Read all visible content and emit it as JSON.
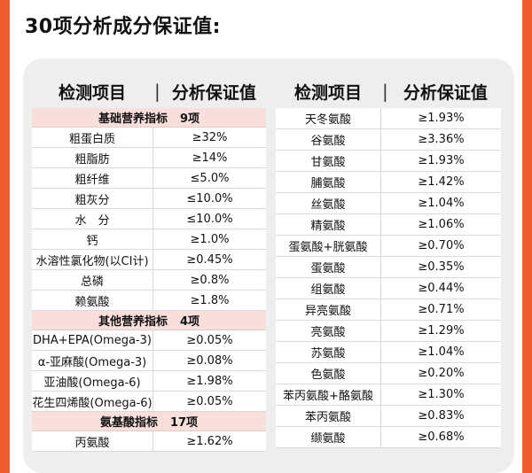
{
  "title": "30项分析成分保证值:",
  "headers": {
    "left": [
      "检测项目",
      "分析保证值"
    ],
    "right": [
      "检测项目",
      "分析保证值"
    ]
  },
  "left_sections": [
    {
      "title": "基础营养指标",
      "count": "9项",
      "rows": [
        {
          "name": "粗蛋白质",
          "value": "≥32%"
        },
        {
          "name": "粗脂肪",
          "value": "≥14%"
        },
        {
          "name": "粗纤维",
          "value": "≤5.0%"
        },
        {
          "name": "粗灰分",
          "value": "≤10.0%"
        },
        {
          "name": "水　分",
          "value": "≤10.0%"
        },
        {
          "name": "钙",
          "value": "≥1.0%"
        },
        {
          "name": "水溶性氯化物(以CI计)",
          "value": "≥0.45%"
        },
        {
          "name": "总磷",
          "value": "≥0.8%"
        },
        {
          "name": "赖氨酸",
          "value": "≥1.8%"
        }
      ]
    },
    {
      "title": "其他营养指标",
      "count": "4项",
      "rows": [
        {
          "name": "DHA+EPA(Omega-3)",
          "value": "≥0.05%"
        },
        {
          "name": "α-亚麻酸(Omega-3)",
          "value": "≥0.08%"
        },
        {
          "name": "亚油酸(Omega-6)",
          "value": "≥1.98%"
        },
        {
          "name": "花生四烯酸(Omega-6)",
          "value": "≥0.05%"
        }
      ]
    },
    {
      "title": "氨基酸指标",
      "count": "17项",
      "rows": [
        {
          "name": "丙氨酸",
          "value": "≥1.62%"
        }
      ]
    }
  ],
  "right_rows": [
    {
      "name": "天冬氨酸",
      "value": "≥1.93%"
    },
    {
      "name": "谷氨酸",
      "value": "≥3.36%"
    },
    {
      "name": "甘氨酸",
      "value": "≥1.93%"
    },
    {
      "name": "脯氨酸",
      "value": "≥1.42%"
    },
    {
      "name": "丝氨酸",
      "value": "≥1.04%"
    },
    {
      "name": "精氨酸",
      "value": "≥1.06%"
    },
    {
      "name": "蛋氨酸+胱氨酸",
      "value": "≥0.70%"
    },
    {
      "name": "蛋氨酸",
      "value": "≥0.35%"
    },
    {
      "name": "组氨酸",
      "value": "≥0.44%"
    },
    {
      "name": "异亮氨酸",
      "value": "≥0.71%"
    },
    {
      "name": "亮氨酸",
      "value": "≥1.29%"
    },
    {
      "name": "苏氨酸",
      "value": "≥1.04%"
    },
    {
      "name": "色氨酸",
      "value": "≥0.20%"
    },
    {
      "name": "苯丙氨酸+酪氨酸",
      "value": "≥1.30%"
    },
    {
      "name": "苯丙氨酸",
      "value": "≥0.83%"
    },
    {
      "name": "缬氨酸",
      "value": "≥0.68%"
    }
  ],
  "colors": {
    "accent": "#ef5a2c",
    "card": "#eeeeee",
    "section": "#f8dfdc"
  }
}
